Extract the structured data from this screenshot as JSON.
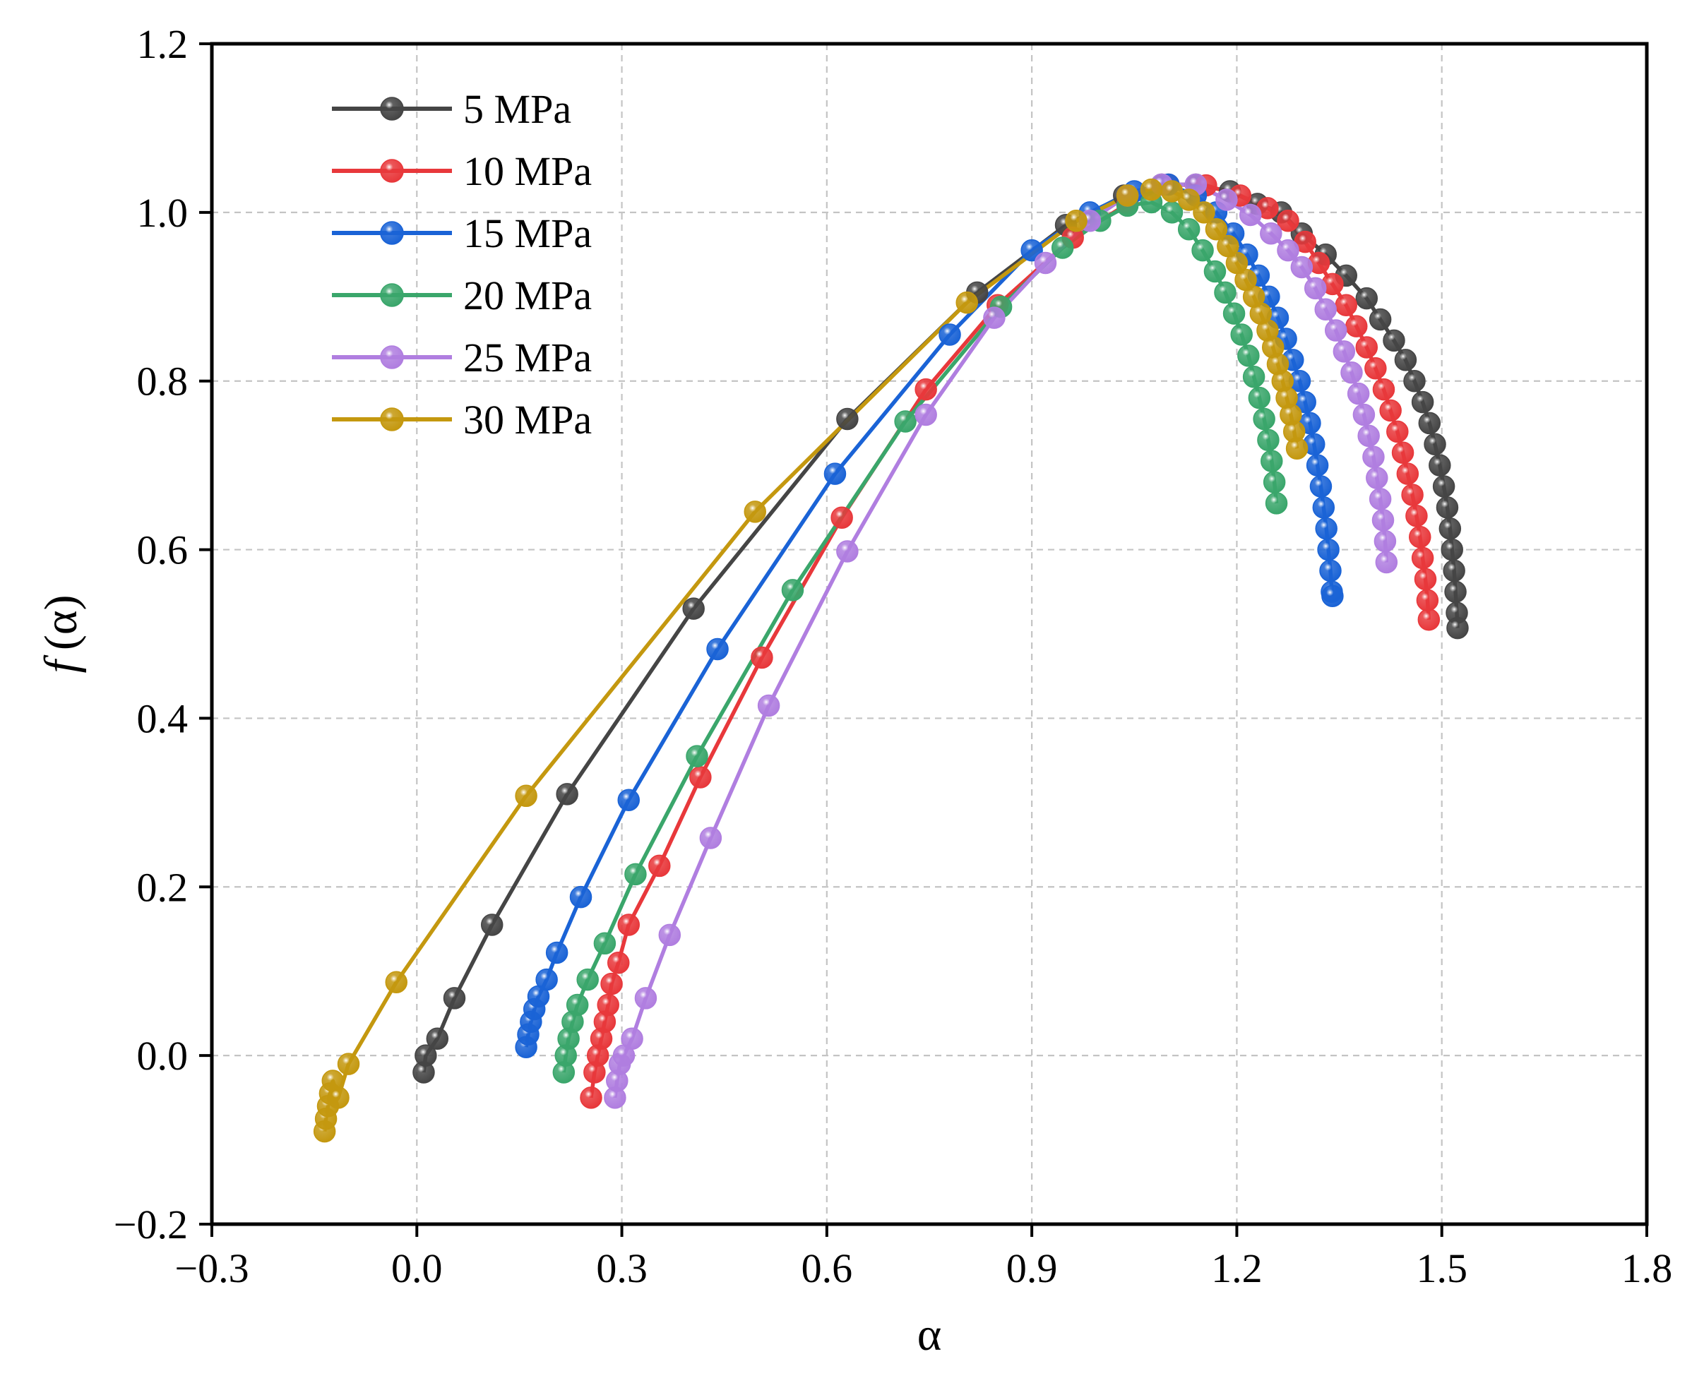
{
  "chart_data": {
    "type": "line",
    "title": "",
    "xlabel": "α",
    "ylabel_italic": "f",
    "ylabel_rest": "(α)",
    "xlim": [
      -0.3,
      1.8
    ],
    "ylim": [
      -0.2,
      1.2
    ],
    "xticks": [
      -0.3,
      0.0,
      0.3,
      0.6,
      0.9,
      1.2,
      1.5,
      1.8
    ],
    "xtick_labels": [
      "−0.3",
      "0.0",
      "0.3",
      "0.6",
      "0.9",
      "1.2",
      "1.5",
      "1.8"
    ],
    "yticks": [
      -0.2,
      0.0,
      0.2,
      0.4,
      0.6,
      0.8,
      1.0,
      1.2
    ],
    "ytick_labels": [
      "−0.2",
      "0.0",
      "0.2",
      "0.4",
      "0.6",
      "0.8",
      "1.0",
      "1.2"
    ],
    "grid": true,
    "legend_position": "top-left",
    "series": [
      {
        "name": "5 MPa",
        "color": "#454545",
        "points": [
          [
            0.01,
            -0.02
          ],
          [
            0.013,
            0.0
          ],
          [
            0.03,
            0.02
          ],
          [
            0.055,
            0.068
          ],
          [
            0.11,
            0.155
          ],
          [
            0.22,
            0.31
          ],
          [
            0.405,
            0.53
          ],
          [
            0.63,
            0.755
          ],
          [
            0.82,
            0.905
          ],
          [
            0.95,
            0.985
          ],
          [
            1.035,
            1.02
          ],
          [
            1.09,
            1.033
          ],
          [
            1.14,
            1.033
          ],
          [
            1.19,
            1.025
          ],
          [
            1.23,
            1.01
          ],
          [
            1.265,
            1.0
          ],
          [
            1.295,
            0.975
          ],
          [
            1.33,
            0.95
          ],
          [
            1.36,
            0.925
          ],
          [
            1.39,
            0.898
          ],
          [
            1.41,
            0.873
          ],
          [
            1.43,
            0.848
          ],
          [
            1.447,
            0.825
          ],
          [
            1.46,
            0.8
          ],
          [
            1.472,
            0.775
          ],
          [
            1.482,
            0.75
          ],
          [
            1.49,
            0.725
          ],
          [
            1.497,
            0.7
          ],
          [
            1.503,
            0.675
          ],
          [
            1.508,
            0.65
          ],
          [
            1.512,
            0.625
          ],
          [
            1.515,
            0.6
          ],
          [
            1.518,
            0.575
          ],
          [
            1.52,
            0.55
          ],
          [
            1.522,
            0.525
          ],
          [
            1.523,
            0.507
          ]
        ]
      },
      {
        "name": "10 MPa",
        "color": "#e8383b",
        "points": [
          [
            0.255,
            -0.05
          ],
          [
            0.26,
            -0.02
          ],
          [
            0.265,
            0.0
          ],
          [
            0.27,
            0.02
          ],
          [
            0.275,
            0.04
          ],
          [
            0.28,
            0.06
          ],
          [
            0.285,
            0.085
          ],
          [
            0.295,
            0.11
          ],
          [
            0.31,
            0.155
          ],
          [
            0.355,
            0.225
          ],
          [
            0.415,
            0.33
          ],
          [
            0.505,
            0.472
          ],
          [
            0.622,
            0.638
          ],
          [
            0.745,
            0.79
          ],
          [
            0.85,
            0.89
          ],
          [
            0.96,
            0.97
          ],
          [
            1.04,
            1.01
          ],
          [
            1.1,
            1.033
          ],
          [
            1.155,
            1.032
          ],
          [
            1.205,
            1.02
          ],
          [
            1.245,
            1.005
          ],
          [
            1.275,
            0.99
          ],
          [
            1.3,
            0.965
          ],
          [
            1.32,
            0.94
          ],
          [
            1.34,
            0.915
          ],
          [
            1.36,
            0.89
          ],
          [
            1.375,
            0.865
          ],
          [
            1.39,
            0.84
          ],
          [
            1.403,
            0.815
          ],
          [
            1.415,
            0.79
          ],
          [
            1.425,
            0.765
          ],
          [
            1.435,
            0.74
          ],
          [
            1.443,
            0.715
          ],
          [
            1.45,
            0.69
          ],
          [
            1.457,
            0.665
          ],
          [
            1.463,
            0.64
          ],
          [
            1.468,
            0.615
          ],
          [
            1.472,
            0.59
          ],
          [
            1.476,
            0.565
          ],
          [
            1.479,
            0.54
          ],
          [
            1.481,
            0.517
          ]
        ]
      },
      {
        "name": "15 MPa",
        "color": "#1a63d6",
        "points": [
          [
            0.16,
            0.01
          ],
          [
            0.163,
            0.025
          ],
          [
            0.167,
            0.04
          ],
          [
            0.172,
            0.055
          ],
          [
            0.178,
            0.07
          ],
          [
            0.19,
            0.09
          ],
          [
            0.205,
            0.122
          ],
          [
            0.24,
            0.188
          ],
          [
            0.31,
            0.303
          ],
          [
            0.44,
            0.482
          ],
          [
            0.612,
            0.69
          ],
          [
            0.78,
            0.855
          ],
          [
            0.9,
            0.955
          ],
          [
            0.985,
            1.0
          ],
          [
            1.05,
            1.025
          ],
          [
            1.1,
            1.033
          ],
          [
            1.14,
            1.02
          ],
          [
            1.17,
            1.0
          ],
          [
            1.195,
            0.975
          ],
          [
            1.215,
            0.95
          ],
          [
            1.232,
            0.925
          ],
          [
            1.247,
            0.9
          ],
          [
            1.26,
            0.875
          ],
          [
            1.272,
            0.85
          ],
          [
            1.282,
            0.825
          ],
          [
            1.292,
            0.8
          ],
          [
            1.3,
            0.775
          ],
          [
            1.307,
            0.75
          ],
          [
            1.313,
            0.725
          ],
          [
            1.318,
            0.7
          ],
          [
            1.323,
            0.675
          ],
          [
            1.327,
            0.65
          ],
          [
            1.331,
            0.625
          ],
          [
            1.334,
            0.6
          ],
          [
            1.337,
            0.575
          ],
          [
            1.339,
            0.55
          ],
          [
            1.34,
            0.545
          ]
        ]
      },
      {
        "name": "20 MPa",
        "color": "#3aa66b",
        "points": [
          [
            0.215,
            -0.02
          ],
          [
            0.218,
            0.0
          ],
          [
            0.222,
            0.02
          ],
          [
            0.228,
            0.04
          ],
          [
            0.235,
            0.06
          ],
          [
            0.25,
            0.09
          ],
          [
            0.275,
            0.133
          ],
          [
            0.32,
            0.215
          ],
          [
            0.41,
            0.355
          ],
          [
            0.55,
            0.552
          ],
          [
            0.715,
            0.752
          ],
          [
            0.855,
            0.888
          ],
          [
            0.945,
            0.958
          ],
          [
            1.0,
            0.99
          ],
          [
            1.04,
            1.008
          ],
          [
            1.075,
            1.012
          ],
          [
            1.105,
            1.0
          ],
          [
            1.13,
            0.98
          ],
          [
            1.15,
            0.955
          ],
          [
            1.168,
            0.93
          ],
          [
            1.183,
            0.905
          ],
          [
            1.196,
            0.88
          ],
          [
            1.207,
            0.855
          ],
          [
            1.217,
            0.83
          ],
          [
            1.225,
            0.805
          ],
          [
            1.233,
            0.78
          ],
          [
            1.24,
            0.755
          ],
          [
            1.246,
            0.73
          ],
          [
            1.251,
            0.705
          ],
          [
            1.255,
            0.68
          ],
          [
            1.258,
            0.655
          ]
        ]
      },
      {
        "name": "25 MPa",
        "color": "#b07ee0",
        "points": [
          [
            0.29,
            -0.05
          ],
          [
            0.293,
            -0.03
          ],
          [
            0.297,
            -0.01
          ],
          [
            0.303,
            0.0
          ],
          [
            0.315,
            0.02
          ],
          [
            0.335,
            0.068
          ],
          [
            0.37,
            0.143
          ],
          [
            0.43,
            0.258
          ],
          [
            0.515,
            0.415
          ],
          [
            0.63,
            0.598
          ],
          [
            0.745,
            0.76
          ],
          [
            0.845,
            0.875
          ],
          [
            0.92,
            0.94
          ],
          [
            0.985,
            0.99
          ],
          [
            1.04,
            1.02
          ],
          [
            1.09,
            1.033
          ],
          [
            1.14,
            1.033
          ],
          [
            1.185,
            1.015
          ],
          [
            1.22,
            0.997
          ],
          [
            1.25,
            0.975
          ],
          [
            1.275,
            0.955
          ],
          [
            1.295,
            0.935
          ],
          [
            1.315,
            0.91
          ],
          [
            1.33,
            0.885
          ],
          [
            1.345,
            0.86
          ],
          [
            1.357,
            0.835
          ],
          [
            1.368,
            0.81
          ],
          [
            1.378,
            0.785
          ],
          [
            1.386,
            0.76
          ],
          [
            1.393,
            0.735
          ],
          [
            1.4,
            0.71
          ],
          [
            1.405,
            0.685
          ],
          [
            1.41,
            0.66
          ],
          [
            1.414,
            0.635
          ],
          [
            1.417,
            0.61
          ],
          [
            1.419,
            0.585
          ]
        ]
      },
      {
        "name": "30 MPa",
        "color": "#c4980f",
        "points": [
          [
            -0.135,
            -0.09
          ],
          [
            -0.133,
            -0.075
          ],
          [
            -0.13,
            -0.06
          ],
          [
            -0.127,
            -0.045
          ],
          [
            -0.123,
            -0.03
          ],
          [
            -0.115,
            -0.05
          ],
          [
            -0.1,
            -0.01
          ],
          [
            -0.03,
            0.087
          ],
          [
            0.16,
            0.308
          ],
          [
            0.495,
            0.645
          ],
          [
            0.805,
            0.893
          ],
          [
            0.965,
            0.99
          ],
          [
            1.04,
            1.02
          ],
          [
            1.075,
            1.027
          ],
          [
            1.105,
            1.025
          ],
          [
            1.13,
            1.015
          ],
          [
            1.152,
            1.0
          ],
          [
            1.17,
            0.98
          ],
          [
            1.187,
            0.96
          ],
          [
            1.2,
            0.94
          ],
          [
            1.213,
            0.92
          ],
          [
            1.225,
            0.9
          ],
          [
            1.235,
            0.88
          ],
          [
            1.245,
            0.86
          ],
          [
            1.253,
            0.84
          ],
          [
            1.26,
            0.82
          ],
          [
            1.267,
            0.8
          ],
          [
            1.273,
            0.78
          ],
          [
            1.279,
            0.76
          ],
          [
            1.284,
            0.74
          ],
          [
            1.288,
            0.72
          ]
        ]
      }
    ]
  }
}
